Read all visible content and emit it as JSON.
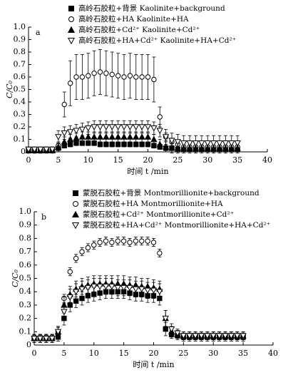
{
  "chart_data": [
    {
      "type": "scatter",
      "panel_label": "a",
      "x_label": "时间 t /min",
      "y_label": "C/C₀",
      "x": [
        0,
        1,
        2,
        3,
        4,
        5,
        6,
        7,
        8,
        9,
        10,
        11,
        12,
        13,
        14,
        15,
        16,
        17,
        18,
        19,
        20,
        21,
        22,
        23,
        24,
        25,
        26,
        27,
        28,
        29,
        30,
        31,
        32,
        33,
        34,
        35
      ],
      "xlim": [
        0,
        40
      ],
      "xticks": [
        0,
        5,
        10,
        15,
        20,
        25,
        30,
        35,
        40
      ],
      "ylim": [
        0,
        1
      ],
      "yticks": [
        0,
        0.1,
        0.2,
        0.3,
        0.4,
        0.5,
        0.6,
        0.7,
        0.8,
        0.9,
        {
          "value": 1,
          "label": "1.0"
        }
      ],
      "series": [
        {
          "name": "高岭石胶粒+背景 Kaolinite+background",
          "marker": "square",
          "color": "#000",
          "values": [
            0.01,
            0.01,
            0.01,
            0.01,
            0.01,
            0.03,
            0.05,
            0.06,
            0.07,
            0.07,
            0.07,
            0.07,
            0.06,
            0.06,
            0.06,
            0.06,
            0.06,
            0.06,
            0.06,
            0.06,
            0.06,
            0.05,
            0.04,
            0.03,
            0.03,
            0.02,
            0.02,
            0.02,
            0.02,
            0.02,
            0.02,
            0.02,
            0.02,
            0.02,
            0.02,
            0.02
          ],
          "errors": [
            0.02,
            0.02,
            0.02,
            0.02,
            0.02,
            0.02,
            0.02,
            0.02,
            0.02,
            0.02,
            0.02,
            0.02,
            0.02,
            0.02,
            0.02,
            0.02,
            0.02,
            0.02,
            0.02,
            0.02,
            0.02,
            0.02,
            0.02,
            0.02,
            0.02,
            0.02,
            0.02,
            0.02,
            0.02,
            0.02,
            0.02,
            0.02,
            0.02,
            0.02,
            0.02,
            0.02
          ]
        },
        {
          "name": "高岭石胶粒+HA Kaolinite+HA",
          "marker": "circle",
          "color": "#000",
          "values": [
            0.01,
            0.01,
            0.01,
            0.02,
            0.02,
            0.05,
            0.38,
            0.55,
            0.6,
            0.6,
            0.61,
            0.63,
            0.64,
            0.63,
            0.62,
            0.61,
            0.6,
            0.61,
            0.6,
            0.6,
            0.6,
            0.58,
            0.28,
            0.12,
            0.08,
            0.06,
            0.04,
            0.04,
            0.04,
            0.04,
            0.04,
            0.04,
            0.04,
            0.04,
            0.04,
            0.04
          ],
          "errors": [
            0.02,
            0.02,
            0.02,
            0.02,
            0.02,
            0.02,
            0.1,
            0.18,
            0.18,
            0.18,
            0.18,
            0.18,
            0.18,
            0.18,
            0.18,
            0.18,
            0.18,
            0.18,
            0.18,
            0.18,
            0.18,
            0.18,
            0.08,
            0.03,
            0.03,
            0.03,
            0.03,
            0.03,
            0.03,
            0.03,
            0.03,
            0.03,
            0.03,
            0.03,
            0.03,
            0.03
          ]
        },
        {
          "name": "高岭石胶粒+Cd²⁺ Kaolinite+Cd²⁺",
          "marker": "triangle",
          "color": "#000",
          "values": [
            0.01,
            0.01,
            0.01,
            0.01,
            0.01,
            0.04,
            0.08,
            0.1,
            0.11,
            0.12,
            0.12,
            0.12,
            0.12,
            0.12,
            0.12,
            0.12,
            0.12,
            0.12,
            0.12,
            0.12,
            0.12,
            0.1,
            0.06,
            0.04,
            0.03,
            0.03,
            0.03,
            0.03,
            0.03,
            0.03,
            0.03,
            0.03,
            0.03,
            0.03,
            0.03,
            0.03
          ],
          "errors": [
            0.02,
            0.02,
            0.02,
            0.02,
            0.02,
            0.04,
            0.04,
            0.04,
            0.04,
            0.04,
            0.04,
            0.04,
            0.04,
            0.04,
            0.04,
            0.04,
            0.04,
            0.04,
            0.04,
            0.04,
            0.04,
            0.04,
            0.04,
            0.04,
            0.04,
            0.04,
            0.04,
            0.04,
            0.04,
            0.04,
            0.04,
            0.04,
            0.04,
            0.04,
            0.04,
            0.04
          ]
        },
        {
          "name": "高岭石胶粒+HA+Cd²⁺ Kaolinite+HA+Cd²⁺",
          "marker": "triangle-down",
          "color": "#000",
          "values": [
            0.02,
            0.02,
            0.02,
            0.02,
            0.02,
            0.12,
            0.15,
            0.16,
            0.17,
            0.18,
            0.19,
            0.2,
            0.2,
            0.2,
            0.2,
            0.2,
            0.2,
            0.2,
            0.2,
            0.2,
            0.2,
            0.19,
            0.17,
            0.12,
            0.09,
            0.08,
            0.07,
            0.07,
            0.07,
            0.07,
            0.07,
            0.07,
            0.07,
            0.07,
            0.07,
            0.07
          ],
          "errors": [
            0.02,
            0.02,
            0.02,
            0.02,
            0.02,
            0.05,
            0.05,
            0.05,
            0.05,
            0.05,
            0.05,
            0.05,
            0.05,
            0.05,
            0.05,
            0.05,
            0.05,
            0.05,
            0.05,
            0.05,
            0.05,
            0.05,
            0.05,
            0.06,
            0.06,
            0.06,
            0.06,
            0.06,
            0.06,
            0.06,
            0.06,
            0.06,
            0.06,
            0.06,
            0.06,
            0.06
          ]
        }
      ]
    },
    {
      "type": "scatter",
      "panel_label": "b",
      "x_label": "时间 t /min",
      "y_label": "C/C₀",
      "x": [
        0,
        1,
        2,
        3,
        4,
        5,
        6,
        7,
        8,
        9,
        10,
        11,
        12,
        13,
        14,
        15,
        16,
        17,
        18,
        19,
        20,
        21,
        22,
        23,
        24,
        25,
        26,
        27,
        28,
        29,
        30,
        31,
        32,
        33,
        34,
        35
      ],
      "xlim": [
        0,
        40
      ],
      "xticks": [
        0,
        5,
        10,
        15,
        20,
        25,
        30,
        35,
        40
      ],
      "ylim": [
        0,
        1
      ],
      "yticks": [
        0,
        0.1,
        0.2,
        0.3,
        0.4,
        0.5,
        0.6,
        0.7,
        0.8,
        0.9,
        {
          "value": 1,
          "label": "1.0"
        }
      ],
      "series": [
        {
          "name": "蒙脱石胶粒+背景 Montmorillionite+background",
          "marker": "square",
          "color": "#000",
          "values": [
            0.05,
            0.05,
            0.05,
            0.05,
            0.06,
            0.2,
            0.3,
            0.33,
            0.35,
            0.37,
            0.38,
            0.39,
            0.4,
            0.4,
            0.4,
            0.4,
            0.39,
            0.38,
            0.38,
            0.37,
            0.37,
            0.35,
            0.12,
            0.08,
            0.07,
            0.06,
            0.06,
            0.06,
            0.06,
            0.06,
            0.06,
            0.06,
            0.06,
            0.06,
            0.06,
            0.06
          ],
          "errors": [
            0.03,
            0.03,
            0.03,
            0.03,
            0.03,
            0.05,
            0.05,
            0.05,
            0.05,
            0.05,
            0.05,
            0.05,
            0.05,
            0.05,
            0.05,
            0.05,
            0.05,
            0.05,
            0.05,
            0.05,
            0.05,
            0.05,
            0.05,
            0.03,
            0.03,
            0.03,
            0.03,
            0.03,
            0.03,
            0.03,
            0.03,
            0.03,
            0.03,
            0.03,
            0.03,
            0.03
          ]
        },
        {
          "name": "蒙脱石胶粒+HA Montmorillionite+HA",
          "marker": "circle",
          "color": "#000",
          "values": [
            0.06,
            0.06,
            0.06,
            0.06,
            0.1,
            0.35,
            0.55,
            0.65,
            0.7,
            0.73,
            0.75,
            0.77,
            0.78,
            0.77,
            0.78,
            0.78,
            0.77,
            0.78,
            0.78,
            0.78,
            0.77,
            0.69,
            null,
            null,
            null,
            null,
            null,
            null,
            null,
            null,
            null,
            null,
            null,
            null,
            null,
            null
          ],
          "errors": [
            0.02,
            0.02,
            0.02,
            0.02,
            0.03,
            0.03,
            0.03,
            0.03,
            0.03,
            0.03,
            0.03,
            0.03,
            0.03,
            0.03,
            0.03,
            0.03,
            0.03,
            0.03,
            0.03,
            0.03,
            0.03,
            0.03,
            null,
            null,
            null,
            null,
            null,
            null,
            null,
            null,
            null,
            null,
            null,
            null,
            null,
            null
          ]
        },
        {
          "name": "蒙脱石胶粒+Cd²⁺ Montmorillionite+Cd²⁺",
          "marker": "triangle",
          "color": "#000",
          "values": [
            0.05,
            0.05,
            0.05,
            0.05,
            0.1,
            0.3,
            0.38,
            0.42,
            0.44,
            0.45,
            0.46,
            0.46,
            0.46,
            0.46,
            0.46,
            0.46,
            0.45,
            0.45,
            0.44,
            0.44,
            0.43,
            0.42,
            0.2,
            0.1,
            0.08,
            0.07,
            0.07,
            0.07,
            0.07,
            0.07,
            0.07,
            0.07,
            0.07,
            0.07,
            0.07,
            0.07
          ],
          "errors": [
            0.03,
            0.03,
            0.03,
            0.03,
            0.04,
            0.06,
            0.06,
            0.06,
            0.06,
            0.06,
            0.06,
            0.06,
            0.06,
            0.06,
            0.06,
            0.06,
            0.06,
            0.06,
            0.06,
            0.06,
            0.06,
            0.06,
            0.06,
            0.04,
            0.03,
            0.03,
            0.03,
            0.03,
            0.03,
            0.03,
            0.03,
            0.03,
            0.03,
            0.03,
            0.03,
            0.03
          ]
        },
        {
          "name": "蒙脱石胶粒+HA+Cd²⁺ Montmorillionite+HA+Cd²⁺",
          "marker": "triangle-down",
          "color": "#000",
          "values": [
            0.05,
            0.05,
            0.05,
            0.05,
            0.1,
            0.25,
            0.36,
            0.4,
            0.42,
            0.43,
            0.44,
            0.44,
            0.44,
            0.44,
            0.43,
            0.43,
            0.43,
            0.42,
            0.42,
            0.41,
            0.41,
            0.4,
            0.2,
            0.12,
            0.09,
            0.07,
            0.07,
            0.07,
            0.07,
            0.07,
            0.07,
            0.07,
            0.07,
            0.07,
            0.07,
            0.07
          ],
          "errors": [
            0.03,
            0.03,
            0.03,
            0.03,
            0.04,
            0.06,
            0.06,
            0.06,
            0.06,
            0.06,
            0.06,
            0.06,
            0.06,
            0.06,
            0.06,
            0.06,
            0.06,
            0.06,
            0.06,
            0.06,
            0.06,
            0.06,
            0.06,
            0.04,
            0.03,
            0.03,
            0.03,
            0.03,
            0.03,
            0.03,
            0.03,
            0.03,
            0.03,
            0.03,
            0.03,
            0.03
          ]
        }
      ]
    }
  ]
}
